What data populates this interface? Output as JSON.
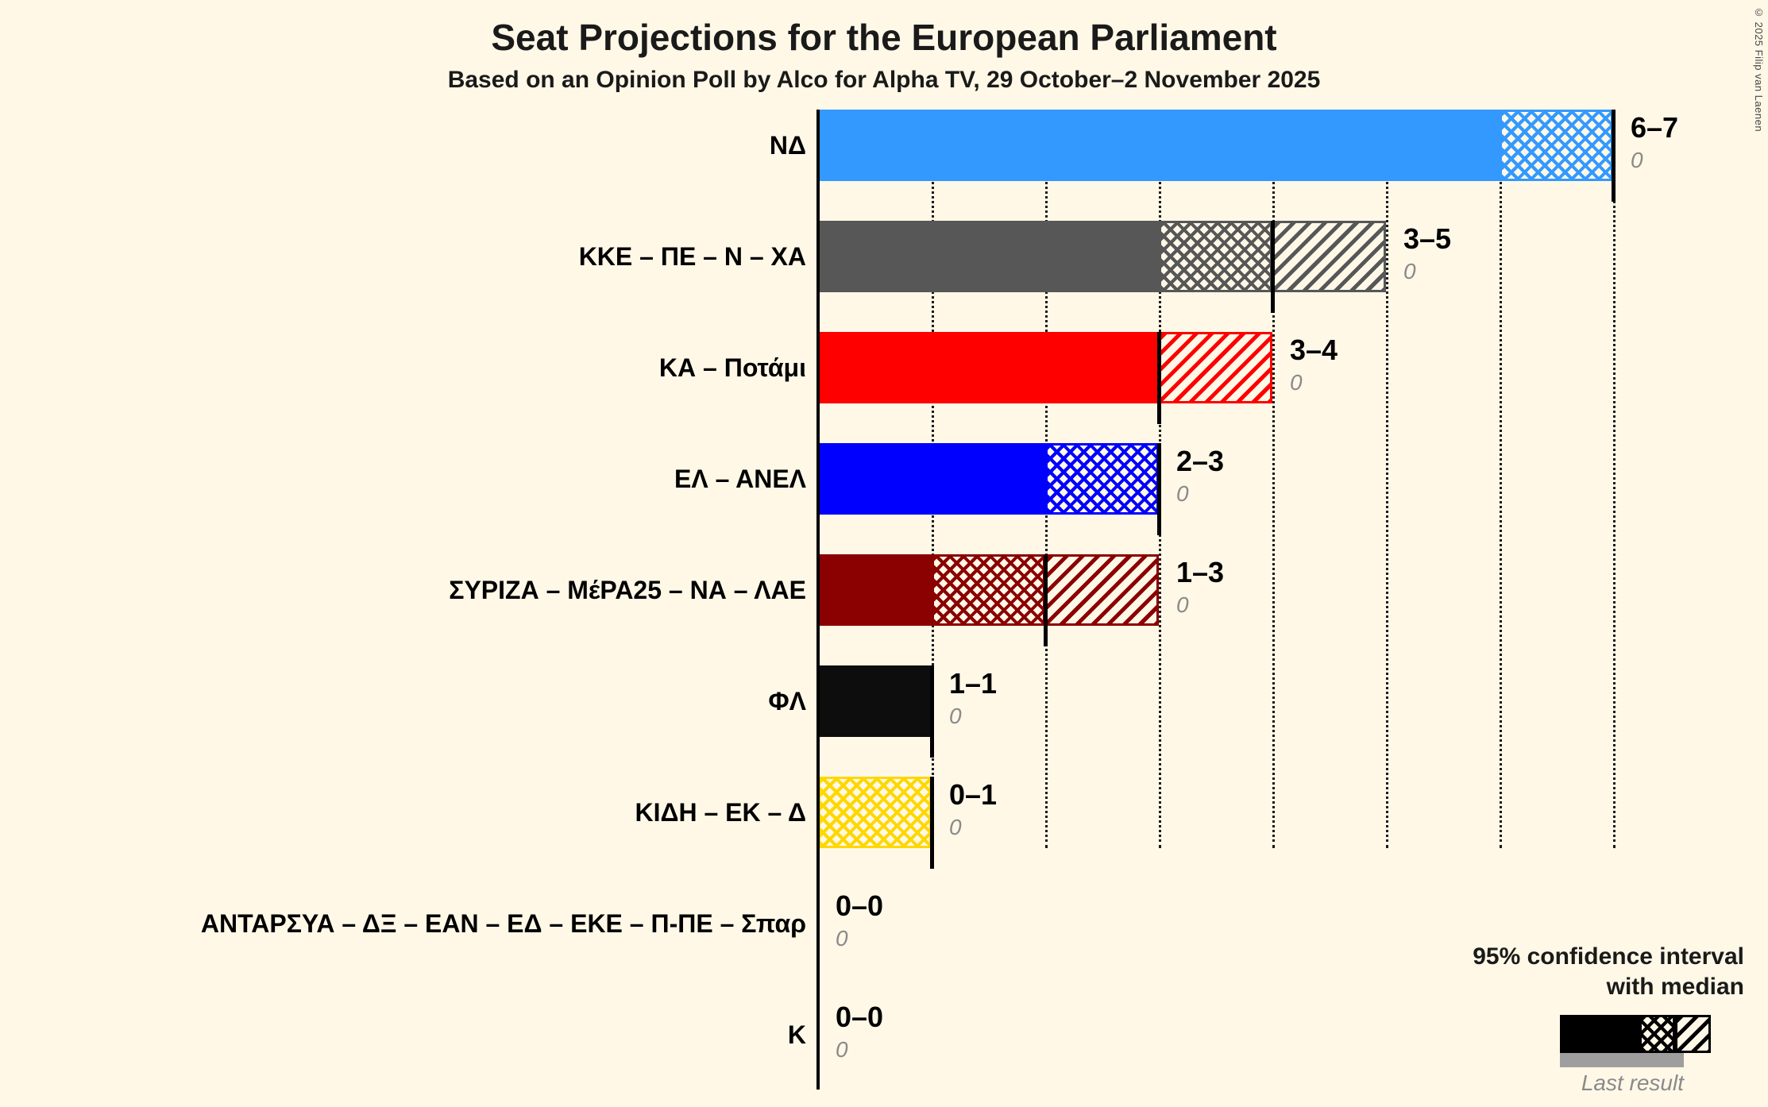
{
  "title": "Seat Projections for the European Parliament",
  "subtitle": "Based on an Opinion Poll by Alco for Alpha TV, 29 October–2 November 2025",
  "copyright": "© 2025 Filip van Laenen",
  "legend": {
    "ci_line1": "95% confidence interval",
    "ci_line2": "with median",
    "last_result": "Last result"
  },
  "colors": {
    "background": "#FFF8E7",
    "gridline": "#1a1a1a",
    "last_result_gray": "#9e9e9e"
  },
  "chart_data": {
    "type": "bar",
    "orientation": "horizontal",
    "unit": "seats",
    "x_min": 0,
    "x_max": 7,
    "gridlines": [
      1,
      2,
      3,
      4,
      5,
      6,
      7
    ],
    "note": "Bars show 95% confidence interval of seats: solid = certain seats up to CI lower bound, crosshatch = lower bound to median, diagonal hatch = median to upper bound; vertical line = median; gray value below label = last result.",
    "parties": [
      {
        "label": "ΝΔ",
        "ci_text": "6–7",
        "low": 6,
        "median": 7,
        "high": 7,
        "last_result": "0",
        "color": "#3399FF"
      },
      {
        "label": "ΚΚΕ – ΠΕ – Ν – ΧΑ",
        "ci_text": "3–5",
        "low": 3,
        "median": 4,
        "high": 5,
        "last_result": "0",
        "color": "#575757"
      },
      {
        "label": "ΚΑ – Ποτάμι",
        "ci_text": "3–4",
        "low": 3,
        "median": 3,
        "high": 4,
        "last_result": "0",
        "color": "#FF0000"
      },
      {
        "label": "ΕΛ – ΑΝΕΛ",
        "ci_text": "2–3",
        "low": 2,
        "median": 3,
        "high": 3,
        "last_result": "0",
        "color": "#0000FF"
      },
      {
        "label": "ΣΥΡΙΖΑ – ΜέΡΑ25 – ΝΑ – ΛΑΕ",
        "ci_text": "1–3",
        "low": 1,
        "median": 2,
        "high": 3,
        "last_result": "0",
        "color": "#8B0000"
      },
      {
        "label": "ΦΛ",
        "ci_text": "1–1",
        "low": 1,
        "median": 1,
        "high": 1,
        "last_result": "0",
        "color": "#0D0D0D"
      },
      {
        "label": "ΚΙΔΗ – ΕΚ – Δ",
        "ci_text": "0–1",
        "low": 0,
        "median": 1,
        "high": 1,
        "last_result": "0",
        "color": "#FFD700"
      },
      {
        "label": "ΑΝΤΑΡΣΥΑ – ΔΞ – ΕΑΝ – ΕΔ – ΕΚΕ – Π-ΠΕ – Σπαρ",
        "ci_text": "0–0",
        "low": 0,
        "median": 0,
        "high": 0,
        "last_result": "0",
        "color": "#000000"
      },
      {
        "label": "Κ",
        "ci_text": "0–0",
        "low": 0,
        "median": 0,
        "high": 0,
        "last_result": "0",
        "color": "#000000"
      }
    ]
  }
}
